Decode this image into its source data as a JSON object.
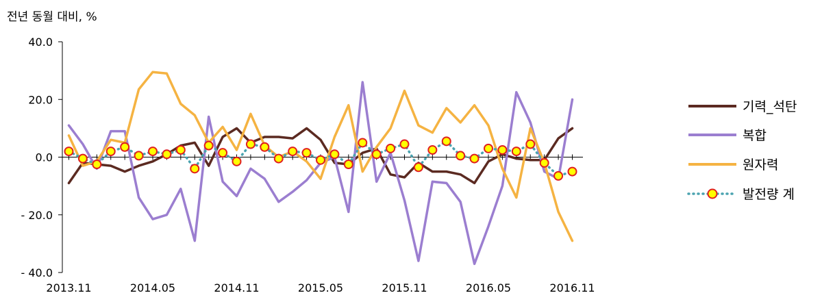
{
  "chart_data": {
    "type": "line",
    "ylabel": "전년 동월 대비, %",
    "ylim": [
      -40,
      40
    ],
    "y_ticks": [
      40,
      20,
      0,
      -20,
      -40
    ],
    "y_tick_labels": [
      "40.0",
      "20.0",
      "0.0",
      "- 20.0",
      "- 40.0"
    ],
    "x_tick_labels": [
      "2013.11",
      "2014.05",
      "2014.11",
      "2015.05",
      "2015.11",
      "2016.05",
      "2016.11"
    ],
    "x_tick_index": [
      0,
      6,
      12,
      18,
      24,
      30,
      36
    ],
    "x": [
      "2013.11",
      "2013.12",
      "2014.01",
      "2014.02",
      "2014.03",
      "2014.04",
      "2014.05",
      "2014.06",
      "2014.07",
      "2014.08",
      "2014.09",
      "2014.10",
      "2014.11",
      "2014.12",
      "2015.01",
      "2015.02",
      "2015.03",
      "2015.04",
      "2015.05",
      "2015.06",
      "2015.07",
      "2015.08",
      "2015.09",
      "2015.10",
      "2015.11",
      "2015.12",
      "2016.01",
      "2016.02",
      "2016.03",
      "2016.04",
      "2016.05",
      "2016.06",
      "2016.07",
      "2016.08",
      "2016.09",
      "2016.10",
      "2016.11"
    ],
    "grid": false,
    "legend_position": "right",
    "series": [
      {
        "name": "기력_석탄",
        "color": "#5b2a21",
        "style": "line",
        "values": [
          -9,
          -2,
          -2.5,
          -3,
          -5,
          -3,
          -1.5,
          1,
          4,
          5,
          -3,
          7,
          10,
          5,
          7,
          7,
          6.5,
          10,
          6,
          -2,
          -2.5,
          1.5,
          3,
          -6,
          -7,
          -2,
          -5,
          -5,
          -6,
          -9,
          -1.5,
          1,
          -0.5,
          -1,
          -1,
          6.5,
          10
        ]
      },
      {
        "name": "복합",
        "color": "#9b7ed0",
        "style": "line",
        "values": [
          11,
          4.5,
          -4,
          9,
          9,
          -14,
          -21.5,
          -20,
          -11,
          -29,
          14,
          -8.5,
          -13.5,
          -4,
          -7.5,
          -15.5,
          -12,
          -8,
          -2,
          0,
          -19,
          26,
          -8.5,
          1.5,
          -15,
          -36,
          -8.5,
          -9,
          -15.5,
          -37,
          -24,
          -10,
          22.5,
          12,
          -5,
          -7.5,
          20
        ]
      },
      {
        "name": "원자력",
        "color": "#f5b342",
        "style": "line",
        "values": [
          7.5,
          -3,
          -1.5,
          6,
          5,
          23.5,
          29.5,
          29,
          18.5,
          14.5,
          5,
          10.5,
          2.5,
          15,
          4,
          0,
          2,
          -1.5,
          -7.5,
          7,
          18,
          -5,
          3.5,
          10,
          23,
          11,
          8.5,
          17,
          12,
          18,
          11,
          -4,
          -14,
          10,
          -2,
          -19,
          -29
        ]
      },
      {
        "name": "발전량 계",
        "color": "#4ba3b0",
        "style": "dotted-marker",
        "marker_fill": "#ffff00",
        "marker_edge": "#e02020",
        "values": [
          2,
          -0.5,
          -2.5,
          2,
          3.5,
          0.5,
          2,
          1,
          2.5,
          -4,
          4,
          1.5,
          -1.5,
          4.5,
          3.5,
          -0.5,
          2,
          1.5,
          -1,
          1,
          -2.5,
          5,
          1,
          3,
          4.5,
          -3.5,
          2.5,
          5.5,
          0.5,
          -0.5,
          3,
          2.5,
          2,
          4.5,
          -2,
          -6.5,
          -5
        ]
      }
    ]
  }
}
